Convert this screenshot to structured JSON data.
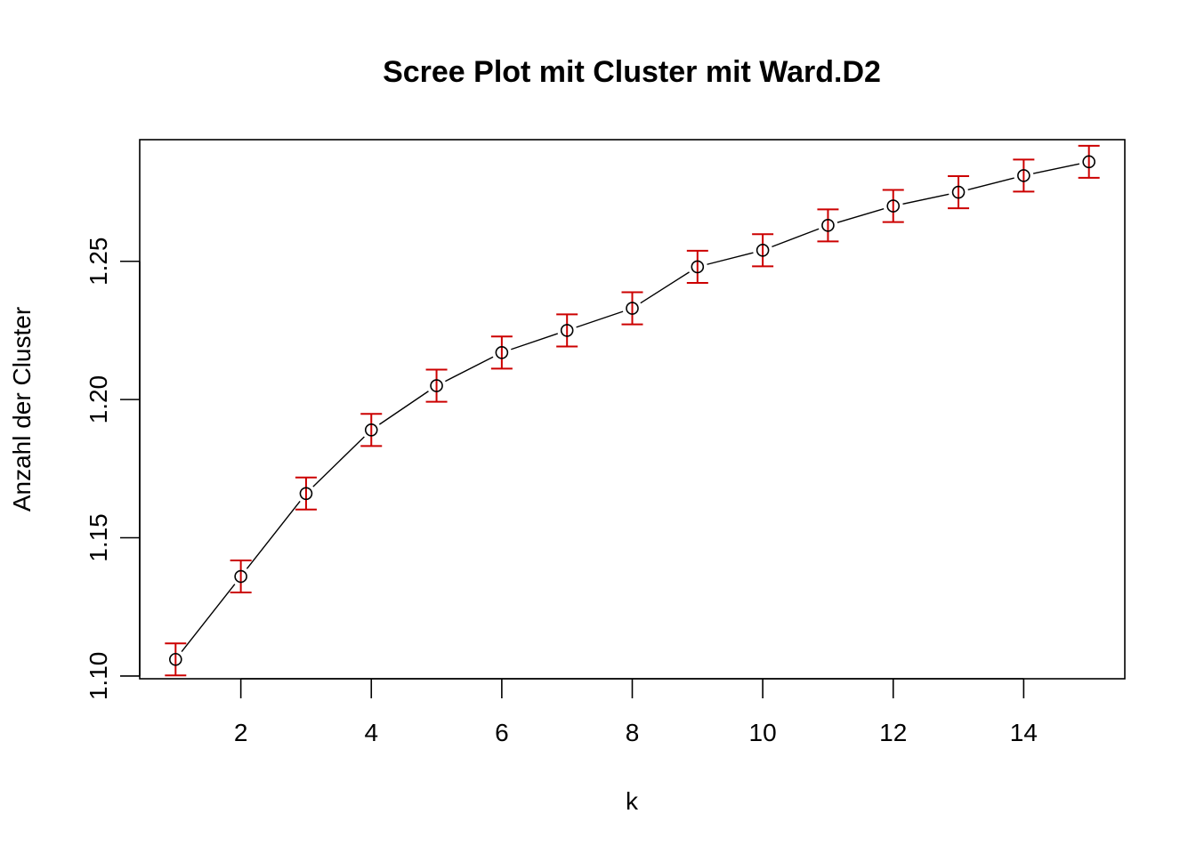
{
  "chart_data": {
    "type": "scatter",
    "title": "Scree Plot mit Cluster mit Ward.D2",
    "xlabel": "k",
    "ylabel": "Anzahl der Cluster",
    "xlim": [
      0.45,
      15.55
    ],
    "ylim": [
      1.099,
      1.294
    ],
    "x_ticks": [
      2,
      4,
      6,
      8,
      10,
      12,
      14
    ],
    "x_tick_labels": [
      "2",
      "4",
      "6",
      "8",
      "10",
      "12",
      "14"
    ],
    "y_ticks": [
      1.1,
      1.15,
      1.2,
      1.25
    ],
    "y_tick_labels": [
      "1.10",
      "1.15",
      "1.20",
      "1.25"
    ],
    "grid": false,
    "series": [
      {
        "x": [
          1,
          2,
          3,
          4,
          5,
          6,
          7,
          8,
          9,
          10,
          11,
          12,
          13,
          14,
          15
        ],
        "values": [
          1.106,
          1.136,
          1.166,
          1.189,
          1.205,
          1.217,
          1.225,
          1.233,
          1.248,
          1.254,
          1.263,
          1.27,
          1.275,
          1.281,
          1.286
        ],
        "error": 0.0058,
        "line_color": "#000000",
        "marker": "open-circle",
        "error_bar_color": "#CC0000"
      }
    ]
  }
}
